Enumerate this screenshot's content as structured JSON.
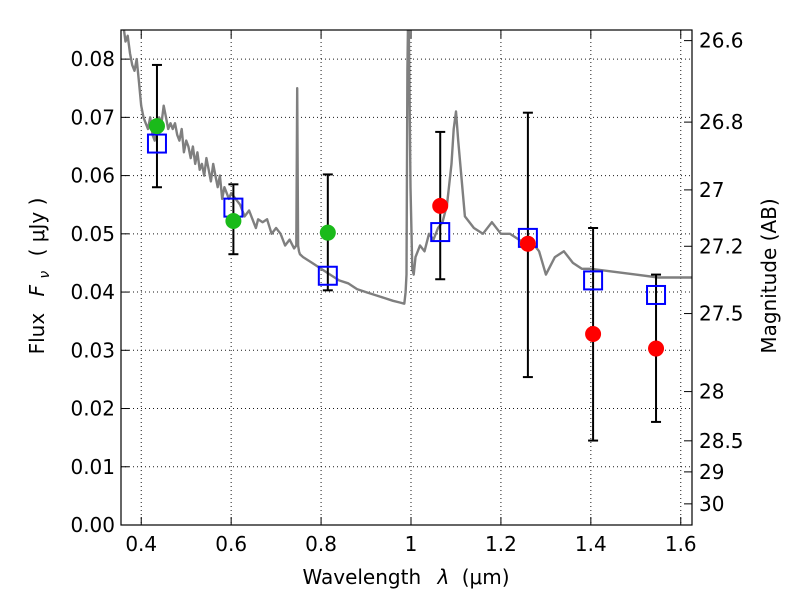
{
  "chart_data": {
    "type": "scatter",
    "title": "",
    "xlabel_prefix": "Wavelength",
    "xlabel_symbol": "λ",
    "xlabel_unit": "(μm)",
    "ylabel_prefix": "Flux",
    "ylabel_symbol": "F",
    "ylabel_subscript": "ν",
    "ylabel_unit": "( μJy )",
    "y2label": "Magnitude (AB)",
    "xlim": [
      0.355,
      1.625
    ],
    "ylim": [
      0.0,
      0.085
    ],
    "xticks": [
      0.4,
      0.6,
      0.8,
      1.0,
      1.2,
      1.4,
      1.6
    ],
    "xtick_labels": [
      "0.4",
      "0.6",
      "0.8",
      "1",
      "1.2",
      "1.4",
      "1.6"
    ],
    "yticks": [
      0.0,
      0.01,
      0.02,
      0.03,
      0.04,
      0.05,
      0.06,
      0.07,
      0.08
    ],
    "ytick_labels": [
      "0.00",
      "0.01",
      "0.02",
      "0.03",
      "0.04",
      "0.05",
      "0.06",
      "0.07",
      "0.08"
    ],
    "y2ticks": [
      26.6,
      26.8,
      27.0,
      27.2,
      27.5,
      28.0,
      28.5,
      29.0,
      30.0
    ],
    "y2tick_labels": [
      "26.6",
      "26.8",
      "27",
      "27.2",
      "27.5",
      "28",
      "28.5",
      "29",
      "30"
    ],
    "grid": true,
    "colors": {
      "model": "#7f7f7f",
      "green": "#1aba1a",
      "red": "#ff0000",
      "blue": "#0000ff",
      "errorbar": "#000000"
    },
    "series": [
      {
        "name": "model SED",
        "kind": "line",
        "x": [
          0.355,
          0.36,
          0.365,
          0.37,
          0.375,
          0.38,
          0.385,
          0.39,
          0.395,
          0.4,
          0.405,
          0.41,
          0.415,
          0.42,
          0.425,
          0.43,
          0.435,
          0.44,
          0.445,
          0.45,
          0.455,
          0.46,
          0.465,
          0.47,
          0.475,
          0.48,
          0.485,
          0.49,
          0.495,
          0.5,
          0.505,
          0.51,
          0.515,
          0.52,
          0.525,
          0.53,
          0.535,
          0.54,
          0.545,
          0.55,
          0.555,
          0.56,
          0.565,
          0.57,
          0.575,
          0.58,
          0.585,
          0.59,
          0.595,
          0.6,
          0.61,
          0.62,
          0.63,
          0.64,
          0.65,
          0.655,
          0.66,
          0.67,
          0.68,
          0.69,
          0.7,
          0.71,
          0.72,
          0.73,
          0.74,
          0.745,
          0.747,
          0.749,
          0.751,
          0.753,
          0.76,
          0.78,
          0.8,
          0.82,
          0.84,
          0.86,
          0.88,
          0.9,
          0.92,
          0.94,
          0.96,
          0.975,
          0.985,
          0.988,
          0.99,
          0.992,
          0.994,
          0.996,
          0.999,
          1.003,
          1.006,
          1.01,
          1.02,
          1.03,
          1.04,
          1.05,
          1.06,
          1.07,
          1.08,
          1.09,
          1.095,
          1.1,
          1.105,
          1.12,
          1.14,
          1.16,
          1.18,
          1.2,
          1.22,
          1.24,
          1.26,
          1.275,
          1.285,
          1.3,
          1.32,
          1.34,
          1.36,
          1.38,
          1.4,
          1.45,
          1.5,
          1.55,
          1.6,
          1.625
        ],
        "y": [
          0.088,
          0.086,
          0.083,
          0.084,
          0.081,
          0.079,
          0.078,
          0.08,
          0.076,
          0.072,
          0.07,
          0.069,
          0.068,
          0.07,
          0.067,
          0.066,
          0.068,
          0.07,
          0.069,
          0.072,
          0.07,
          0.068,
          0.069,
          0.068,
          0.069,
          0.067,
          0.066,
          0.068,
          0.064,
          0.066,
          0.065,
          0.063,
          0.065,
          0.062,
          0.064,
          0.061,
          0.062,
          0.06,
          0.063,
          0.061,
          0.059,
          0.062,
          0.06,
          0.058,
          0.06,
          0.056,
          0.058,
          0.057,
          0.056,
          0.057,
          0.056,
          0.055,
          0.053,
          0.054,
          0.052,
          0.051,
          0.0525,
          0.052,
          0.0525,
          0.05,
          0.051,
          0.05,
          0.048,
          0.049,
          0.0475,
          0.048,
          0.075,
          0.048,
          0.047,
          0.0465,
          0.046,
          0.045,
          0.044,
          0.043,
          0.042,
          0.0415,
          0.0405,
          0.04,
          0.0395,
          0.039,
          0.0385,
          0.0382,
          0.038,
          0.04,
          0.043,
          0.078,
          0.09,
          0.08,
          0.058,
          0.044,
          0.043,
          0.046,
          0.048,
          0.047,
          0.05,
          0.049,
          0.051,
          0.052,
          0.055,
          0.062,
          0.068,
          0.071,
          0.066,
          0.053,
          0.051,
          0.05,
          0.052,
          0.05,
          0.05,
          0.049,
          0.048,
          0.048,
          0.047,
          0.043,
          0.046,
          0.047,
          0.045,
          0.044,
          0.044,
          0.0435,
          0.043,
          0.0425,
          0.0425,
          0.0425
        ]
      },
      {
        "name": "observed (green)",
        "kind": "marker-circle",
        "color_key": "green",
        "x": [
          0.435,
          0.605,
          0.815
        ],
        "y": [
          0.0685,
          0.0522,
          0.0502
        ]
      },
      {
        "name": "observed (red)",
        "kind": "marker-circle",
        "color_key": "red",
        "x": [
          1.065,
          1.26,
          1.405,
          1.545
        ],
        "y": [
          0.0548,
          0.0483,
          0.0328,
          0.0303
        ]
      },
      {
        "name": "model photometry",
        "kind": "marker-square",
        "color_key": "blue",
        "x": [
          0.435,
          0.605,
          0.815,
          1.065,
          1.26,
          1.405,
          1.545
        ],
        "y": [
          0.0655,
          0.0545,
          0.0428,
          0.0503,
          0.0493,
          0.042,
          0.0395
        ]
      },
      {
        "name": "error bars",
        "kind": "errorbar",
        "color_key": "errorbar",
        "x": [
          0.435,
          0.605,
          0.815,
          1.065,
          1.26,
          1.405,
          1.545
        ],
        "y_low": [
          0.058,
          0.0465,
          0.0403,
          0.0422,
          0.0254,
          0.0145,
          0.0177
        ],
        "y_high": [
          0.079,
          0.0585,
          0.0602,
          0.0675,
          0.0708,
          0.051,
          0.043
        ]
      }
    ]
  }
}
